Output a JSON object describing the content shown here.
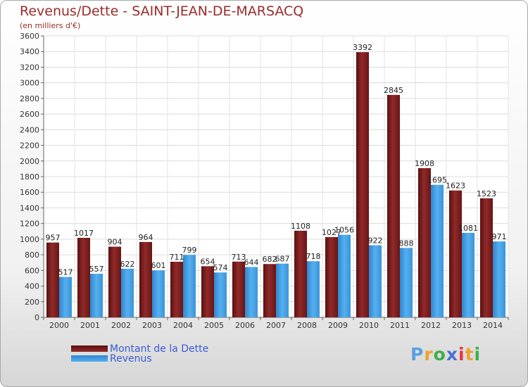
{
  "chart_data": {
    "type": "bar",
    "title": "Revenus/Dette - SAINT-JEAN-DE-MARSACQ",
    "subtitle": "(en milliers d'€)",
    "categories": [
      "2000",
      "2001",
      "2002",
      "2003",
      "2004",
      "2005",
      "2006",
      "2007",
      "2008",
      "2009",
      "2010",
      "2011",
      "2012",
      "2013",
      "2014"
    ],
    "series": [
      {
        "name": "Montant de la Dette",
        "color": "#8b2525",
        "values": [
          957,
          1017,
          904,
          964,
          711,
          654,
          713,
          682,
          1108,
          1027,
          3392,
          2845,
          1908,
          1623,
          1523
        ]
      },
      {
        "name": "Revenus",
        "color": "#3f9de0",
        "values": [
          517,
          557,
          622,
          601,
          799,
          574,
          644,
          687,
          718,
          1056,
          922,
          888,
          1695,
          1081,
          971
        ]
      }
    ],
    "ylim": [
      0,
      3600
    ],
    "yticks": [
      0,
      200,
      400,
      600,
      800,
      1000,
      1200,
      1400,
      1600,
      1800,
      2000,
      2200,
      2400,
      2600,
      2800,
      3000,
      3200,
      3400,
      3600
    ],
    "xlabel": "",
    "ylabel": "",
    "grid": true,
    "legend": "bottom-left"
  },
  "logo": {
    "letters": [
      "P",
      "r",
      "o",
      "x",
      "i",
      "t",
      "i"
    ],
    "colors": [
      "#5aa0e0",
      "#f0a030",
      "#3fae49",
      "#4b6fd6",
      "#e03a3a",
      "#f0a030",
      "#3fae49"
    ]
  }
}
